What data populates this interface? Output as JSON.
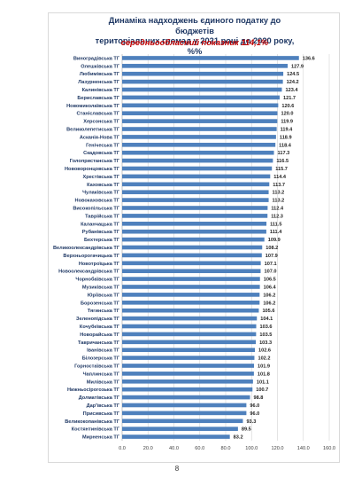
{
  "page": {
    "title_line1": "Динаміка надходжень єдиного податку до бюджетів",
    "title_line2": "територіальних громад у 2021 році до 2020 року, %%",
    "subtitle": "середньообласний показник 114,1%",
    "page_number": "8"
  },
  "colors": {
    "bar": "#4f81bd",
    "title": "#1f3864",
    "subtitle": "#c00000",
    "grid": "#d9d9d9"
  },
  "chart_data": {
    "type": "bar",
    "orientation": "horizontal",
    "title": "Динаміка надходжень єдиного податку до бюджетів територіальних громад у 2021 році до 2020 року, %%",
    "subtitle": "середньообласний показник 114,1%",
    "xlabel": "",
    "ylabel": "",
    "xlim": [
      0,
      160
    ],
    "x_ticks": [
      "0.0",
      "20.0",
      "40.0",
      "60.0",
      "80.0",
      "100.0",
      "120.0",
      "140.0",
      "160.0"
    ],
    "grid": true,
    "categories": [
      "Виноградівська ТГ",
      "Олешківська ТГ",
      "Любимівська ТГ",
      "Лазурненська ТГ",
      "Калинівська ТГ",
      "Бериславська ТГ",
      "Новомиколаївська ТГ",
      "Станіславська ТГ",
      "Херсонська ТГ",
      "Великолепетиська ТГ",
      "Асканія-Нова ТГ",
      "Генічеська ТГ",
      "Скадовська ТГ",
      "Голопристанська ТГ",
      "Нововоронцовська ТГ",
      "Хрестівська ТГ",
      "Каховська ТГ",
      "Чулаківська ТГ",
      "Новокаховська ТГ",
      "Високопільська ТГ",
      "Таврійська ТГ",
      "Каланчацька ТГ",
      "Рубанівська ТГ",
      "Бехтерська ТГ",
      "Великоолександрівська ТГ",
      "Верхньорогачицька ТГ",
      "Новотроїцька ТГ",
      "Новоолександрівська ТГ",
      "Чорнобаївська ТГ",
      "Музиківська ТГ",
      "Юріївська ТГ",
      "Борозенська ТГ",
      "Тягинська ТГ",
      "Зеленопідська ТГ",
      "Кочубеївська ТГ",
      "Новорайська ТГ",
      "Тавричанська ТГ",
      "Іванівська ТГ",
      "Білозерська ТГ",
      "Горностаївська ТГ",
      "Чаплинська ТГ",
      "Милівська ТГ",
      "Нижньосірогозька ТГ",
      "Долматівська ТГ",
      "Дар'ївська ТГ",
      "Присивська ТГ",
      "Великокопанівська ТГ",
      "Костянтинівська ТГ",
      "Мирненська ТГ"
    ],
    "values": [
      136.6,
      127.9,
      124.5,
      124.2,
      123.4,
      121.7,
      120.6,
      120.0,
      119.9,
      119.4,
      118.9,
      118.4,
      117.3,
      116.5,
      115.7,
      114.4,
      113.7,
      113.2,
      113.2,
      112.4,
      112.3,
      111.5,
      111.4,
      109.9,
      108.2,
      107.9,
      107.1,
      107.0,
      106.5,
      106.4,
      106.2,
      106.2,
      105.6,
      104.1,
      103.6,
      103.5,
      103.3,
      102.6,
      102.2,
      101.9,
      101.8,
      101.1,
      100.7,
      98.8,
      96.0,
      96.0,
      93.3,
      89.5,
      83.2
    ],
    "value_labels": [
      "136.6",
      "127.9",
      "124.5",
      "124.2",
      "123.4",
      "121.7",
      "120.6",
      "120.0",
      "119.9",
      "119.4",
      "118.9",
      "118.4",
      "117.3",
      "116.5",
      "115.7",
      "114.4",
      "113.7",
      "113.2",
      "113.2",
      "112.4",
      "112.3",
      "111.5",
      "111.4",
      "109.9",
      "108.2",
      "107.9",
      "107.1",
      "107.0",
      "106.5",
      "106.4",
      "106.2",
      "106.2",
      "105.6",
      "104.1",
      "103.6",
      "103.5",
      "103.3",
      "102.6",
      "102.2",
      "101.9",
      "101.8",
      "101.1",
      "100.7",
      "98.8",
      "96.0",
      "96.0",
      "93.3",
      "89.5",
      "83.2"
    ]
  }
}
